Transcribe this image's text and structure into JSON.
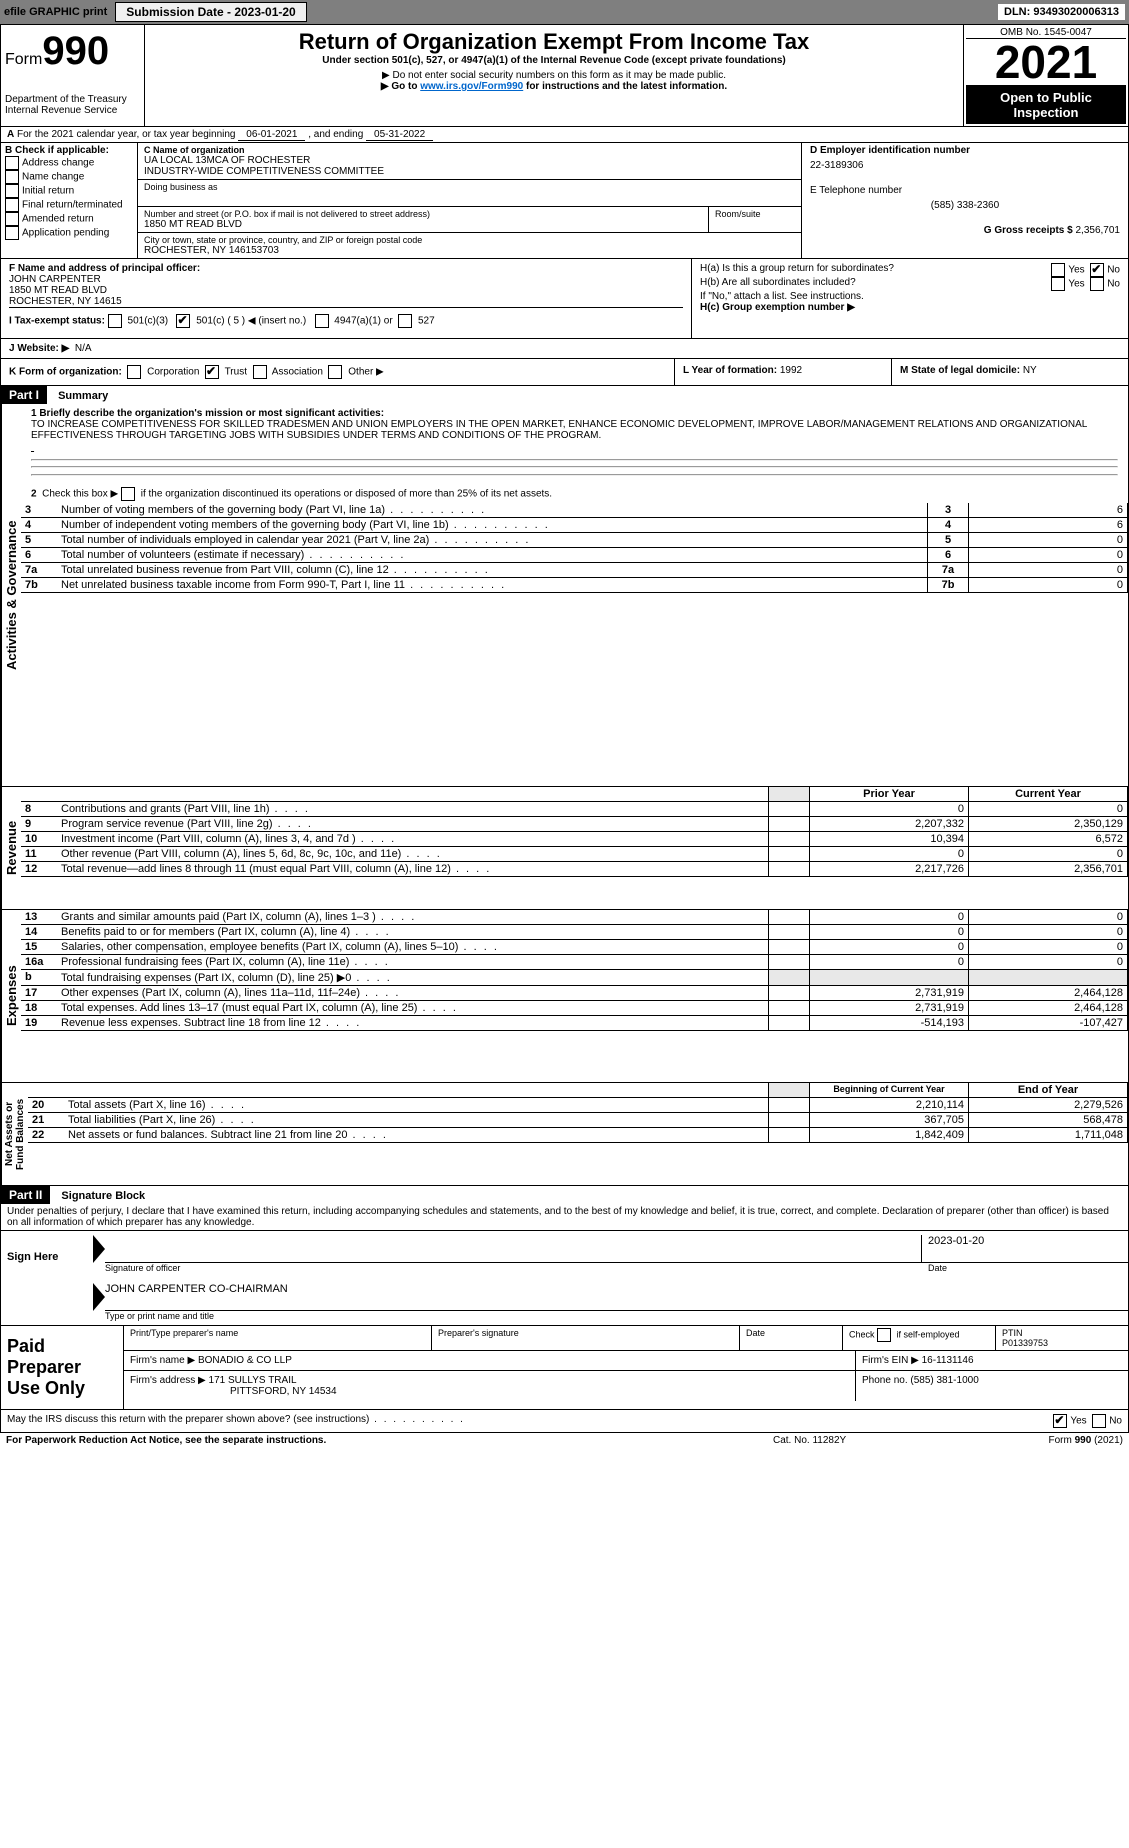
{
  "topbar": {
    "efile": "efile GRAPHIC print",
    "submission_label": "Submission Date - ",
    "submission_date": "2023-01-20",
    "dln_label": "DLN: ",
    "dln": "93493020006313"
  },
  "header": {
    "form_word": "Form",
    "form_num": "990",
    "dept": "Department of the Treasury",
    "irs": "Internal Revenue Service",
    "title": "Return of Organization Exempt From Income Tax",
    "subtitle": "Under section 501(c), 527, or 4947(a)(1) of the Internal Revenue Code (except private foundations)",
    "ssn_note": "▶ Do not enter social security numbers on this form as it may be made public.",
    "goto_pre": "▶ Go to ",
    "goto_link": "www.irs.gov/Form990",
    "goto_post": " for instructions and the latest information.",
    "omb": "OMB No. 1545-0047",
    "year": "2021",
    "open_public": "Open to Public Inspection"
  },
  "line_a": {
    "text_pre": "For the 2021 calendar year, or tax year beginning ",
    "begin": "06-01-2021",
    "mid": " , and ending ",
    "end": "05-31-2022"
  },
  "box_b": {
    "header": "B Check if applicable:",
    "items": [
      "Address change",
      "Name change",
      "Initial return",
      "Final return/terminated",
      "Amended return",
      "Application pending"
    ]
  },
  "box_c": {
    "name_label": "C Name of organization",
    "name1": "UA LOCAL 13MCA OF ROCHESTER",
    "name2": "INDUSTRY-WIDE COMPETITIVENESS COMMITTEE",
    "dba_label": "Doing business as",
    "addr_label": "Number and street (or P.O. box if mail is not delivered to street address)",
    "room_label": "Room/suite",
    "addr": "1850 MT READ BLVD",
    "csz_label": "City or town, state or province, country, and ZIP or foreign postal code",
    "csz": "ROCHESTER, NY  146153703"
  },
  "box_d": {
    "label": "D Employer identification number",
    "value": "22-3189306"
  },
  "box_e": {
    "label": "E Telephone number",
    "value": "(585) 338-2360"
  },
  "box_g": {
    "label": "G Gross receipts $ ",
    "value": "2,356,701"
  },
  "box_f": {
    "label": "F Name and address of principal officer:",
    "name": "JOHN CARPENTER",
    "addr1": "1850 MT READ BLVD",
    "addr2": "ROCHESTER, NY  14615"
  },
  "box_h": {
    "a": "H(a)  Is this a group return for subordinates?",
    "b": "H(b)  Are all subordinates included?",
    "b_note": "If \"No,\" attach a list. See instructions.",
    "c": "H(c)  Group exemption number ▶",
    "yes": "Yes",
    "no": "No"
  },
  "box_i": {
    "label": "I  Tax-exempt status:",
    "opt1": "501(c)(3)",
    "opt2_pre": "501(c) ( ",
    "opt2_num": "5",
    "opt2_post": " ) ◀ (insert no.)",
    "opt3": "4947(a)(1) or",
    "opt4": "527"
  },
  "box_j": {
    "label": "J  Website: ▶",
    "value": "N/A"
  },
  "box_k": {
    "label": "K Form of organization:",
    "opts": [
      "Corporation",
      "Trust",
      "Association",
      "Other ▶"
    ]
  },
  "box_l": {
    "label": "L Year of formation: ",
    "value": "1992"
  },
  "box_m": {
    "label": "M State of legal domicile: ",
    "value": "NY"
  },
  "part1": {
    "bar": "Part I",
    "title": "Summary",
    "q1_label": "1  Briefly describe the organization's mission or most significant activities:",
    "q1_text": "TO INCREASE COMPETITIVENESS FOR SKILLED TRADESMEN AND UNION EMPLOYERS IN THE OPEN MARKET, ENHANCE ECONOMIC DEVELOPMENT, IMPROVE LABOR/MANAGEMENT RELATIONS AND ORGANIZATIONAL EFFECTIVENESS THROUGH TARGETING JOBS WITH SUBSIDIES UNDER TERMS AND CONDITIONS OF THE PROGRAM.",
    "q2": "2  Check this box ▶  if the organization discontinued its operations or disposed of more than 25% of its net assets.",
    "gov_rows": [
      {
        "n": "3",
        "t": "Number of voting members of the governing body (Part VI, line 1a)",
        "box": "3",
        "v": "6"
      },
      {
        "n": "4",
        "t": "Number of independent voting members of the governing body (Part VI, line 1b)",
        "box": "4",
        "v": "6"
      },
      {
        "n": "5",
        "t": "Total number of individuals employed in calendar year 2021 (Part V, line 2a)",
        "box": "5",
        "v": "0"
      },
      {
        "n": "6",
        "t": "Total number of volunteers (estimate if necessary)",
        "box": "6",
        "v": "0"
      },
      {
        "n": "7a",
        "t": "Total unrelated business revenue from Part VIII, column (C), line 12",
        "box": "7a",
        "v": "0"
      },
      {
        "n": "7b",
        "t": "Net unrelated business taxable income from Form 990-T, Part I, line 11",
        "box": "7b",
        "v": "0"
      }
    ],
    "col_head_prior": "Prior Year",
    "col_head_current": "Current Year",
    "rev_rows": [
      {
        "n": "8",
        "t": "Contributions and grants (Part VIII, line 1h)",
        "p": "0",
        "c": "0"
      },
      {
        "n": "9",
        "t": "Program service revenue (Part VIII, line 2g)",
        "p": "2,207,332",
        "c": "2,350,129"
      },
      {
        "n": "10",
        "t": "Investment income (Part VIII, column (A), lines 3, 4, and 7d )",
        "p": "10,394",
        "c": "6,572"
      },
      {
        "n": "11",
        "t": "Other revenue (Part VIII, column (A), lines 5, 6d, 8c, 9c, 10c, and 11e)",
        "p": "0",
        "c": "0"
      },
      {
        "n": "12",
        "t": "Total revenue—add lines 8 through 11 (must equal Part VIII, column (A), line 12)",
        "p": "2,217,726",
        "c": "2,356,701"
      }
    ],
    "exp_rows": [
      {
        "n": "13",
        "t": "Grants and similar amounts paid (Part IX, column (A), lines 1–3 )",
        "p": "0",
        "c": "0"
      },
      {
        "n": "14",
        "t": "Benefits paid to or for members (Part IX, column (A), line 4)",
        "p": "0",
        "c": "0"
      },
      {
        "n": "15",
        "t": "Salaries, other compensation, employee benefits (Part IX, column (A), lines 5–10)",
        "p": "0",
        "c": "0"
      },
      {
        "n": "16a",
        "t": "Professional fundraising fees (Part IX, column (A), line 11e)",
        "p": "0",
        "c": "0"
      },
      {
        "n": "b",
        "t": "Total fundraising expenses (Part IX, column (D), line 25) ▶0",
        "p": "",
        "c": "",
        "shaded": true
      },
      {
        "n": "17",
        "t": "Other expenses (Part IX, column (A), lines 11a–11d, 11f–24e)",
        "p": "2,731,919",
        "c": "2,464,128"
      },
      {
        "n": "18",
        "t": "Total expenses. Add lines 13–17 (must equal Part IX, column (A), line 25)",
        "p": "2,731,919",
        "c": "2,464,128"
      },
      {
        "n": "19",
        "t": "Revenue less expenses. Subtract line 18 from line 12",
        "p": "-514,193",
        "c": "-107,427"
      }
    ],
    "col_head_begin": "Beginning of Current Year",
    "col_head_end": "End of Year",
    "net_rows": [
      {
        "n": "20",
        "t": "Total assets (Part X, line 16)",
        "p": "2,210,114",
        "c": "2,279,526"
      },
      {
        "n": "21",
        "t": "Total liabilities (Part X, line 26)",
        "p": "367,705",
        "c": "568,478"
      },
      {
        "n": "22",
        "t": "Net assets or fund balances. Subtract line 21 from line 20",
        "p": "1,842,409",
        "c": "1,711,048"
      }
    ],
    "side_gov": "Activities & Governance",
    "side_rev": "Revenue",
    "side_exp": "Expenses",
    "side_net": "Net Assets or Fund Balances"
  },
  "part2": {
    "bar": "Part II",
    "title": "Signature Block",
    "penalty": "Under penalties of perjury, I declare that I have examined this return, including accompanying schedules and statements, and to the best of my knowledge and belief, it is true, correct, and complete. Declaration of preparer (other than officer) is based on all information of which preparer has any knowledge.",
    "sign_here": "Sign Here",
    "sig_officer": "Signature of officer",
    "sig_date": "2023-01-20",
    "date_label": "Date",
    "officer_name": "JOHN CARPENTER  CO-CHAIRMAN",
    "type_name": "Type or print name and title",
    "paid_prep": "Paid Preparer Use Only",
    "col_print": "Print/Type preparer's name",
    "col_sig": "Preparer's signature",
    "col_date": "Date",
    "check_self": "Check         if self-employed",
    "ptin_label": "PTIN",
    "ptin": "P01339753",
    "firm_name_label": "Firm's name      ▶ ",
    "firm_name": "BONADIO & CO LLP",
    "firm_ein_label": "Firm's EIN ▶ ",
    "firm_ein": "16-1131146",
    "firm_addr_label": "Firm's address ▶ ",
    "firm_addr1": "171 SULLYS TRAIL",
    "firm_addr2": "PITTSFORD, NY  14534",
    "phone_label": "Phone no. ",
    "phone": "(585) 381-1000",
    "discuss": "May the IRS discuss this return with the preparer shown above? (see instructions)",
    "yes": "Yes",
    "no": "No"
  },
  "footer": {
    "left": "For Paperwork Reduction Act Notice, see the separate instructions.",
    "mid": "Cat. No. 11282Y",
    "right_pre": "Form ",
    "right_form": "990",
    "right_post": " (2021)"
  }
}
